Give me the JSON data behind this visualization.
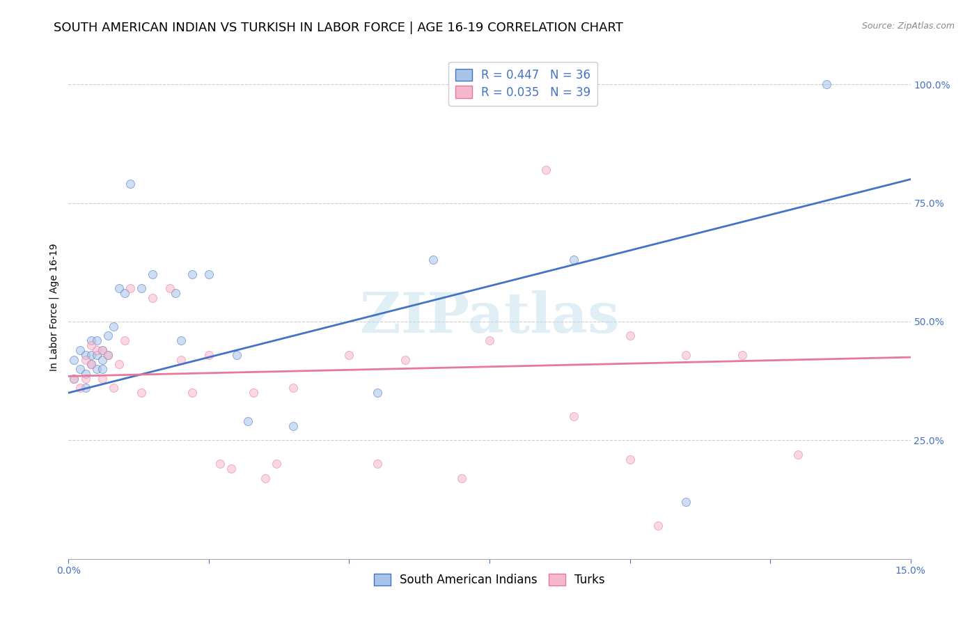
{
  "title": "SOUTH AMERICAN INDIAN VS TURKISH IN LABOR FORCE | AGE 16-19 CORRELATION CHART",
  "source": "Source: ZipAtlas.com",
  "ylabel": "In Labor Force | Age 16-19",
  "legend1_label": "R = 0.447   N = 36",
  "legend2_label": "R = 0.035   N = 39",
  "legend1_face_color": "#a8c4e8",
  "legend2_face_color": "#f5b8cc",
  "blue_color": "#4472C4",
  "pink_color": "#e8799a",
  "watermark_text": "ZIPatlas",
  "blue_scatter_x": [
    0.001,
    0.001,
    0.002,
    0.002,
    0.003,
    0.003,
    0.003,
    0.004,
    0.004,
    0.004,
    0.005,
    0.005,
    0.005,
    0.006,
    0.006,
    0.006,
    0.007,
    0.007,
    0.008,
    0.009,
    0.01,
    0.011,
    0.013,
    0.015,
    0.019,
    0.02,
    0.022,
    0.025,
    0.03,
    0.032,
    0.04,
    0.055,
    0.065,
    0.09,
    0.11,
    0.135
  ],
  "blue_scatter_y": [
    0.38,
    0.42,
    0.4,
    0.44,
    0.43,
    0.39,
    0.36,
    0.43,
    0.41,
    0.46,
    0.43,
    0.4,
    0.46,
    0.44,
    0.42,
    0.4,
    0.47,
    0.43,
    0.49,
    0.57,
    0.56,
    0.79,
    0.57,
    0.6,
    0.56,
    0.46,
    0.6,
    0.6,
    0.43,
    0.29,
    0.28,
    0.35,
    0.63,
    0.63,
    0.12,
    1.0
  ],
  "pink_scatter_x": [
    0.001,
    0.002,
    0.003,
    0.003,
    0.004,
    0.004,
    0.005,
    0.006,
    0.006,
    0.007,
    0.008,
    0.009,
    0.01,
    0.011,
    0.013,
    0.015,
    0.018,
    0.02,
    0.022,
    0.025,
    0.027,
    0.029,
    0.033,
    0.035,
    0.037,
    0.04,
    0.05,
    0.055,
    0.06,
    0.07,
    0.075,
    0.085,
    0.09,
    0.1,
    0.1,
    0.105,
    0.11,
    0.12,
    0.13
  ],
  "pink_scatter_y": [
    0.38,
    0.36,
    0.42,
    0.38,
    0.45,
    0.41,
    0.44,
    0.44,
    0.38,
    0.43,
    0.36,
    0.41,
    0.46,
    0.57,
    0.35,
    0.55,
    0.57,
    0.42,
    0.35,
    0.43,
    0.2,
    0.19,
    0.35,
    0.17,
    0.2,
    0.36,
    0.43,
    0.2,
    0.42,
    0.17,
    0.46,
    0.82,
    0.3,
    0.47,
    0.21,
    0.07,
    0.43,
    0.43,
    0.22
  ],
  "blue_line_x0": 0.0,
  "blue_line_x1": 0.15,
  "blue_line_y0": 0.35,
  "blue_line_y1": 0.8,
  "pink_line_x0": 0.0,
  "pink_line_x1": 0.15,
  "pink_line_y0": 0.385,
  "pink_line_y1": 0.425,
  "xmin": 0.0,
  "xmax": 0.15,
  "ymin": 0.0,
  "ymax": 1.06,
  "ytick_vals": [
    0.25,
    0.5,
    0.75,
    1.0
  ],
  "ytick_labels": [
    "25.0%",
    "50.0%",
    "75.0%",
    "100.0%"
  ],
  "scatter_size": 75,
  "scatter_alpha": 0.55,
  "line_width": 2.0,
  "title_fontsize": 13,
  "label_fontsize": 10,
  "tick_fontsize": 10,
  "legend_fontsize": 12,
  "source_fontsize": 9,
  "bottom_legend_labels": [
    "South American Indians",
    "Turks"
  ]
}
